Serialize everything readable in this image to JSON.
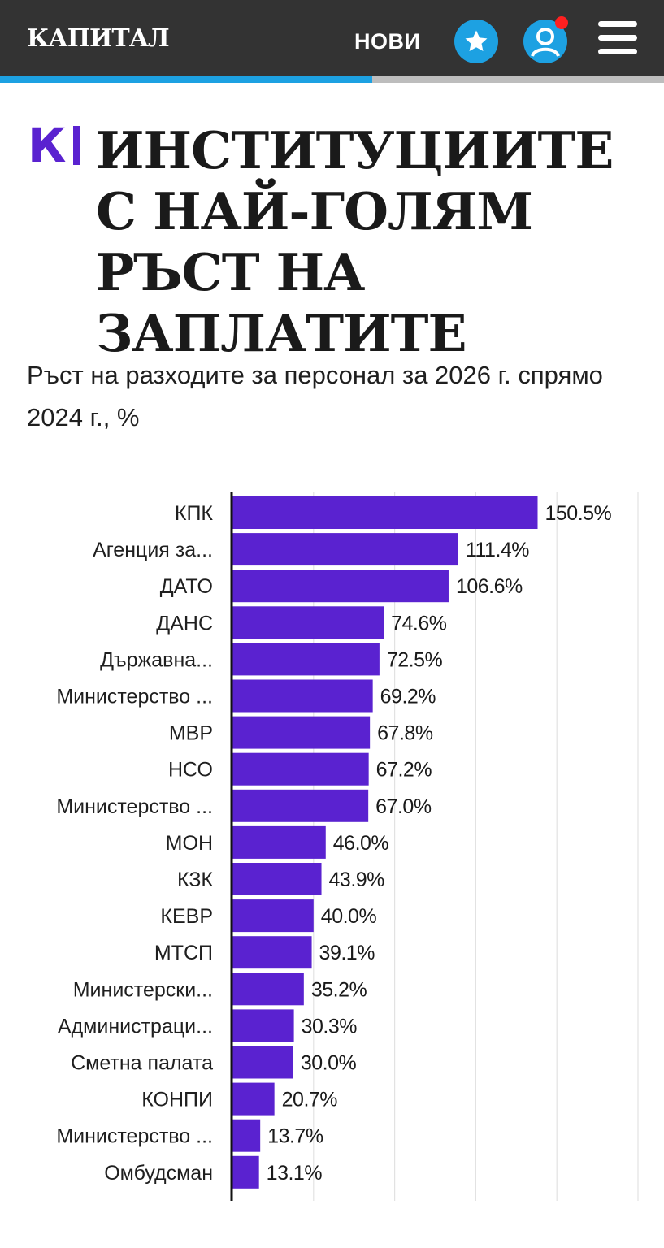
{
  "header": {
    "logo": "КАПИТАЛ",
    "nav_new": "НОВИ",
    "star_icon": "star-icon",
    "user_icon": "user-icon",
    "menu_icon": "hamburger-menu-icon",
    "has_notification": true,
    "scroll_progress": 0.56,
    "colors": {
      "bar_bg": "#333333",
      "accent": "#1da1e2",
      "notification": "#ff2020"
    }
  },
  "article": {
    "brand_mark": "К",
    "title": "ИНСТИТУЦИИТЕ С НАЙ-ГОЛЯМ РЪСТ НА ЗАПЛАТИТЕ",
    "subtitle": "Ръст на разходите за персонал за 2026 г. спрямо 2024 г., %"
  },
  "chart_data": {
    "type": "bar",
    "orientation": "horizontal",
    "title": "",
    "xlabel": "",
    "ylabel": "",
    "xlim": [
      0,
      250
    ],
    "grid": true,
    "bar_color": "#5a22d0",
    "value_suffix": "%",
    "categories": [
      "КПК",
      "Агенция за...",
      "ДАТО",
      "ДАНС",
      "Държавна...",
      "Министерство ...",
      "МВР",
      "НСО",
      "Министерство ...",
      "МОН",
      "КЗК",
      "КЕВР",
      "МТСП",
      "Министерски...",
      "Администраци...",
      "Сметна палата",
      "КОНПИ",
      "Министерство ...",
      "Омбудсман"
    ],
    "values": [
      150.5,
      111.4,
      106.6,
      74.6,
      72.5,
      69.2,
      67.8,
      67.2,
      67.0,
      46.0,
      43.9,
      40.0,
      39.1,
      35.2,
      30.3,
      30.0,
      20.7,
      13.7,
      13.1
    ],
    "value_labels": [
      "150.5%",
      "111.4%",
      "106.6%",
      "74.6%",
      "72.5%",
      "69.2%",
      "67.8%",
      "67.2%",
      "67.0%",
      "46.0%",
      "43.9%",
      "40.0%",
      "39.1%",
      "35.2%",
      "30.3%",
      "30.0%",
      "20.7%",
      "13.7%",
      "13.1%"
    ]
  }
}
